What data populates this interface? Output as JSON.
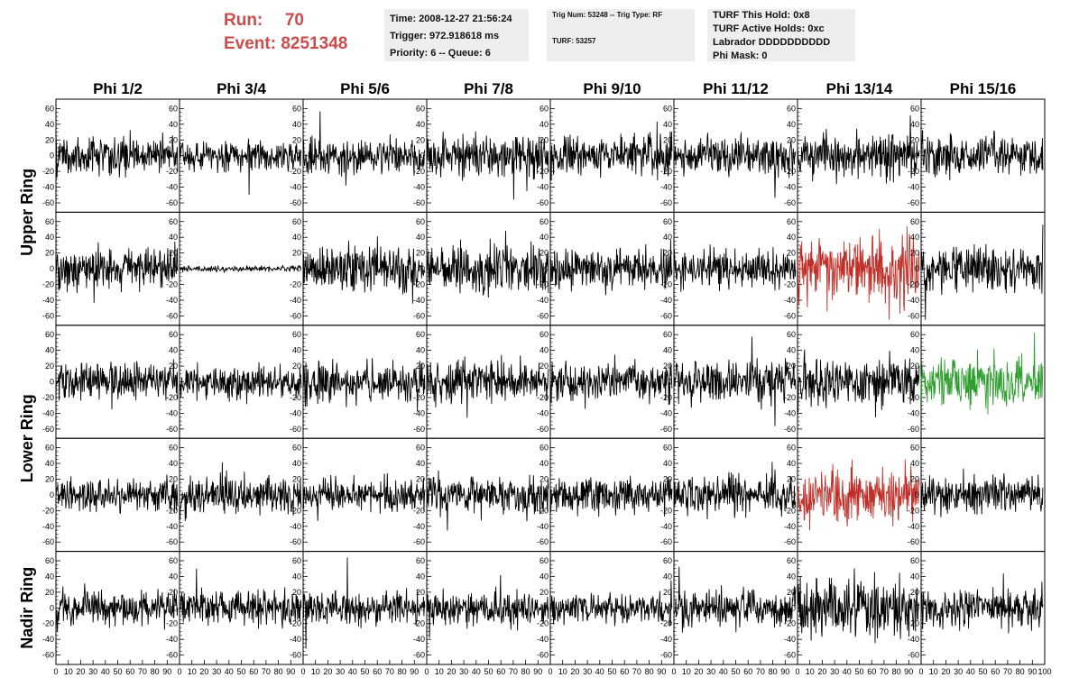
{
  "header": {
    "run_label": "Run:",
    "run_value": "70",
    "event_label": "Event:",
    "event_value": "8251348",
    "time": "Time: 2008-12-27 21:56:24",
    "trigger": "Trigger: 972.918618 ms",
    "priority_queue": "Priority: 6 -- Queue: 6",
    "trig_num": "Trig Num: 53248 -- Trig Type: RF",
    "turf": "TURF: 53257",
    "turf_this_hold": "TURF This Hold: 0x8",
    "turf_active_holds": "TURF Active Holds: 0xc",
    "labrador": "Labrador DDDDDDDDDD",
    "phi_mask": "Phi Mask: 0"
  },
  "chart_data": {
    "type": "line",
    "columns": [
      "Phi 1/2",
      "Phi 3/4",
      "Phi 5/6",
      "Phi 7/8",
      "Phi 9/10",
      "Phi 11/12",
      "Phi 13/14",
      "Phi 15/16"
    ],
    "rows": [
      "Upper Ring",
      "Lower Ring",
      "Nadir Ring"
    ],
    "panel_rows": 5,
    "row_groups": [
      [
        0,
        1
      ],
      [
        2,
        3
      ],
      [
        4
      ]
    ],
    "xlim": [
      0,
      100
    ],
    "ylim": [
      -65,
      65
    ],
    "yticks": [
      -60,
      -40,
      -20,
      0,
      20,
      40,
      60
    ],
    "xticks": [
      0,
      10,
      20,
      30,
      40,
      50,
      60,
      70,
      80,
      90,
      100
    ],
    "x_tick_labels": [
      "0",
      "10",
      "20",
      "30",
      "40",
      "50",
      "60",
      "70",
      "80",
      "90",
      "100"
    ],
    "y_tick_labels": [
      "-60",
      "-40",
      "-20",
      "0",
      "20",
      "40",
      "60"
    ],
    "n_samples": 260,
    "waveform_note": "noise-like voltage waveforms centred on 0; amplitude per panel",
    "amplitudes": [
      [
        13,
        10,
        12,
        14,
        14,
        12,
        15,
        13
      ],
      [
        14,
        2,
        15,
        15,
        13,
        13,
        22,
        14
      ],
      [
        13,
        11,
        13,
        14,
        12,
        14,
        16,
        16
      ],
      [
        11,
        13,
        11,
        13,
        12,
        13,
        18,
        13
      ],
      [
        12,
        11,
        11,
        11,
        10,
        13,
        20,
        13
      ]
    ],
    "highlight_colors": {
      "1-6": "#c0302a",
      "3-6": "#c0302a",
      "2-7": "#2e9e2e"
    },
    "default_color": "#000000"
  }
}
